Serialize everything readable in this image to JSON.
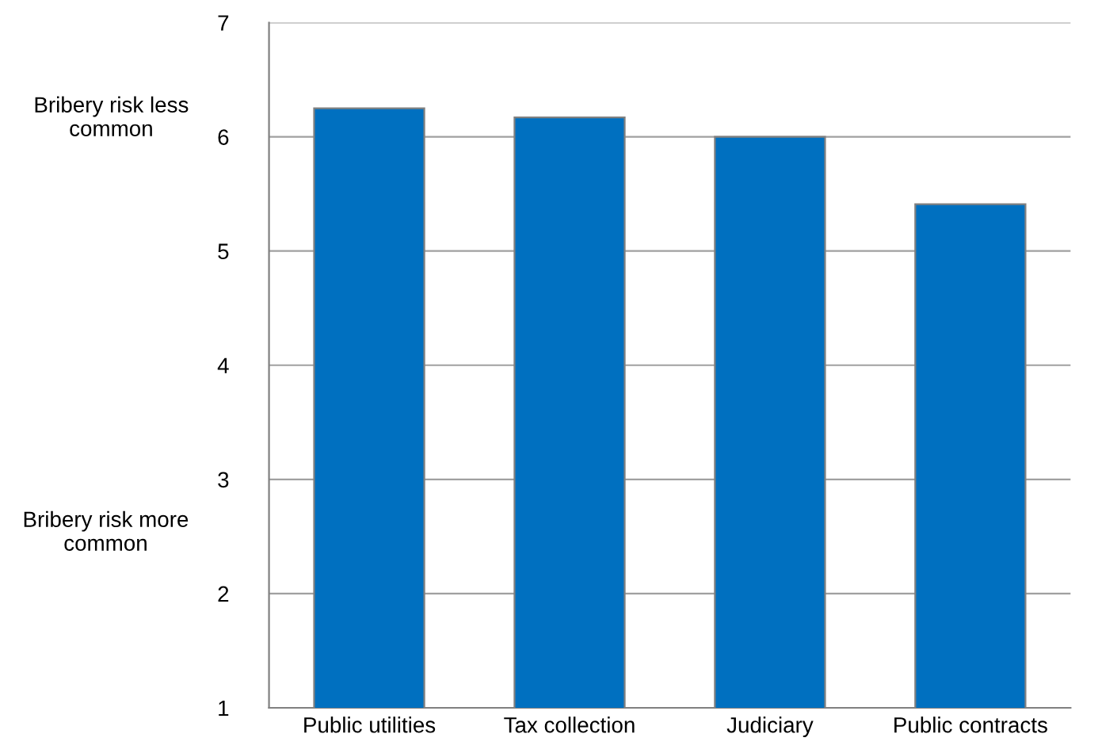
{
  "chart_data": {
    "type": "bar",
    "categories": [
      "Public utilities",
      "Tax collection",
      "Judiciary",
      "Public contracts"
    ],
    "values": [
      6.25,
      6.17,
      6.0,
      5.41
    ],
    "color": "#0070c0",
    "ylim": [
      1,
      7
    ],
    "yticks": [
      1,
      2,
      3,
      4,
      5,
      6,
      7
    ],
    "grid": "y",
    "annotations": [
      "Bribery risk less common",
      "Bribery risk more common"
    ]
  }
}
